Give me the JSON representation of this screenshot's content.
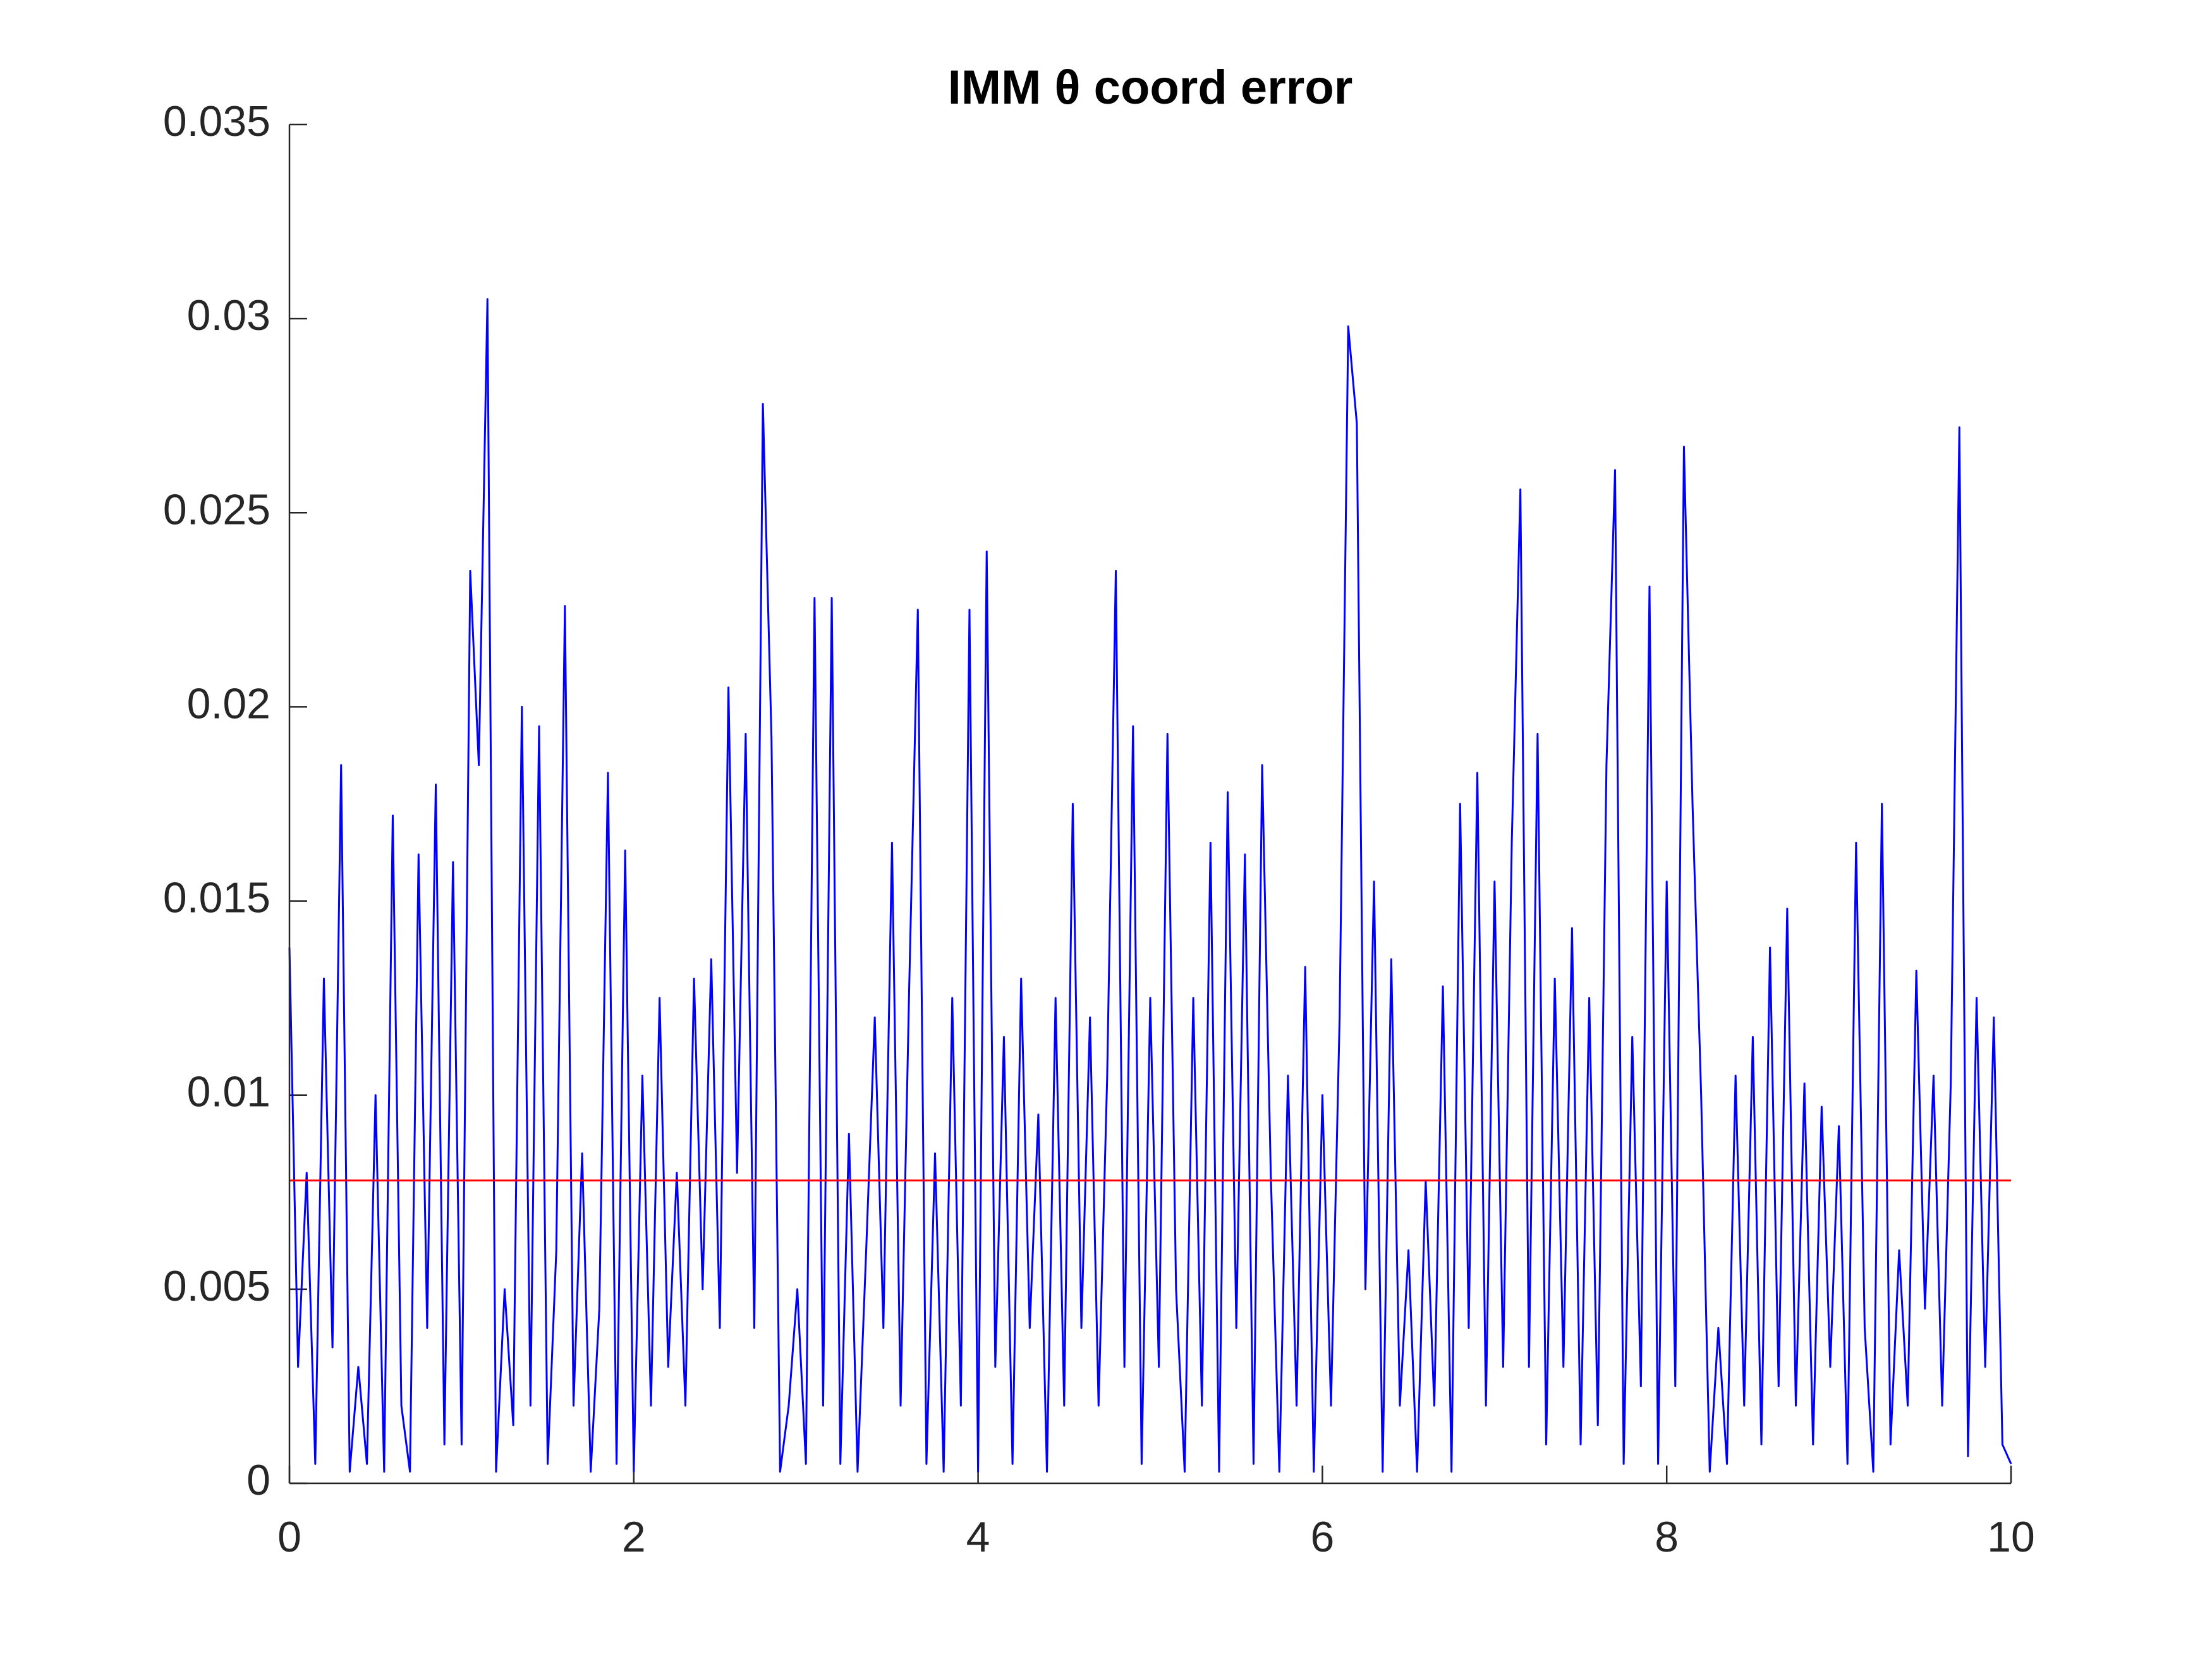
{
  "chart_data": {
    "type": "line",
    "title": "IMM θ coord error",
    "xlim": [
      0,
      10
    ],
    "xticks": [
      0,
      2,
      4,
      6,
      8,
      10
    ],
    "ylim": [
      0,
      0.035
    ],
    "yticks": [
      0,
      0.005,
      0.01,
      0.015,
      0.02,
      0.025,
      0.03,
      0.035
    ],
    "grid": false,
    "series": [
      {
        "color": "#0000ff",
        "x": [
          0,
          0.05,
          0.1,
          0.15,
          0.2,
          0.25,
          0.3,
          0.35,
          0.4,
          0.45,
          0.5,
          0.55,
          0.6,
          0.65,
          0.7,
          0.75,
          0.8,
          0.85,
          0.9,
          0.95,
          1,
          1.05,
          1.1,
          1.15,
          1.2,
          1.25,
          1.3,
          1.35,
          1.4,
          1.45,
          1.5,
          1.55,
          1.6,
          1.65,
          1.7,
          1.75,
          1.8,
          1.85,
          1.9,
          1.95,
          2,
          2.05,
          2.1,
          2.15,
          2.2,
          2.25,
          2.3,
          2.35,
          2.4,
          2.45,
          2.5,
          2.55,
          2.6,
          2.65,
          2.7,
          2.75,
          2.8,
          2.85,
          2.9,
          2.95,
          3,
          3.05,
          3.1,
          3.15,
          3.2,
          3.25,
          3.3,
          3.35,
          3.4,
          3.45,
          3.5,
          3.55,
          3.6,
          3.65,
          3.7,
          3.75,
          3.8,
          3.85,
          3.9,
          3.95,
          4,
          4.05,
          4.1,
          4.15,
          4.2,
          4.25,
          4.3,
          4.35,
          4.4,
          4.45,
          4.5,
          4.55,
          4.6,
          4.65,
          4.7,
          4.75,
          4.8,
          4.85,
          4.9,
          4.95,
          5,
          5.05,
          5.1,
          5.15,
          5.2,
          5.25,
          5.3,
          5.35,
          5.4,
          5.45,
          5.5,
          5.55,
          5.6,
          5.65,
          5.7,
          5.75,
          5.8,
          5.85,
          5.9,
          5.95,
          6,
          6.05,
          6.1,
          6.15,
          6.2,
          6.25,
          6.3,
          6.35,
          6.4,
          6.45,
          6.5,
          6.55,
          6.6,
          6.65,
          6.7,
          6.75,
          6.8,
          6.85,
          6.9,
          6.95,
          7,
          7.05,
          7.1,
          7.15,
          7.2,
          7.25,
          7.3,
          7.35,
          7.4,
          7.45,
          7.5,
          7.55,
          7.6,
          7.65,
          7.7,
          7.75,
          7.8,
          7.85,
          7.9,
          7.95,
          8,
          8.05,
          8.1,
          8.15,
          8.2,
          8.25,
          8.3,
          8.35,
          8.4,
          8.45,
          8.5,
          8.55,
          8.6,
          8.65,
          8.7,
          8.75,
          8.8,
          8.85,
          8.9,
          8.95,
          9,
          9.05,
          9.1,
          9.15,
          9.2,
          9.25,
          9.3,
          9.35,
          9.4,
          9.45,
          9.5,
          9.55,
          9.6,
          9.65,
          9.7,
          9.75,
          9.8,
          9.85,
          9.9,
          9.95,
          10
        ],
        "values": [
          0.0138,
          0.003,
          0.008,
          0.0005,
          0.013,
          0.0035,
          0.0185,
          0.0003,
          0.003,
          0.0005,
          0.01,
          0.0003,
          0.0172,
          0.002,
          0.0003,
          0.0162,
          0.004,
          0.018,
          0.001,
          0.016,
          0.001,
          0.0235,
          0.0185,
          0.0305,
          0.0003,
          0.005,
          0.0015,
          0.02,
          0.002,
          0.0195,
          0.0005,
          0.006,
          0.0226,
          0.002,
          0.0085,
          0.0003,
          0.0045,
          0.0183,
          0.0005,
          0.0163,
          0.0003,
          0.0105,
          0.002,
          0.0125,
          0.003,
          0.008,
          0.002,
          0.013,
          0.005,
          0.0135,
          0.004,
          0.0205,
          0.008,
          0.0193,
          0.004,
          0.0278,
          0.0192,
          0.0003,
          0.002,
          0.005,
          0.0005,
          0.0228,
          0.002,
          0.0228,
          0.0005,
          0.009,
          0.0003,
          0.006,
          0.012,
          0.004,
          0.0165,
          0.002,
          0.0128,
          0.0225,
          0.0005,
          0.0085,
          0.0003,
          0.0125,
          0.002,
          0.0225,
          0.0003,
          0.024,
          0.003,
          0.0115,
          0.0005,
          0.013,
          0.004,
          0.0095,
          0.0003,
          0.0125,
          0.002,
          0.0175,
          0.004,
          0.012,
          0.002,
          0.0105,
          0.0235,
          0.003,
          0.0195,
          0.0005,
          0.0125,
          0.003,
          0.0193,
          0.005,
          0.0003,
          0.0125,
          0.002,
          0.0165,
          0.0003,
          0.0178,
          0.004,
          0.0162,
          0.0005,
          0.0185,
          0.008,
          0.0003,
          0.0105,
          0.002,
          0.0133,
          0.0003,
          0.01,
          0.002,
          0.012,
          0.0298,
          0.0273,
          0.005,
          0.0155,
          0.0003,
          0.0135,
          0.002,
          0.006,
          0.0003,
          0.0078,
          0.002,
          0.0128,
          0.0003,
          0.0175,
          0.004,
          0.0183,
          0.002,
          0.0155,
          0.003,
          0.0165,
          0.0256,
          0.003,
          0.0193,
          0.001,
          0.013,
          0.003,
          0.0143,
          0.001,
          0.0125,
          0.0015,
          0.0185,
          0.0261,
          0.0005,
          0.0115,
          0.0025,
          0.0231,
          0.0005,
          0.0155,
          0.0025,
          0.0267,
          0.0175,
          0.01,
          0.0003,
          0.004,
          0.0005,
          0.0105,
          0.002,
          0.0115,
          0.001,
          0.0138,
          0.0025,
          0.0148,
          0.002,
          0.0103,
          0.001,
          0.0097,
          0.003,
          0.0092,
          0.0005,
          0.0165,
          0.004,
          0.0003,
          0.0175,
          0.001,
          0.006,
          0.002,
          0.0132,
          0.0045,
          0.0105,
          0.002,
          0.0103,
          0.0272,
          0.0007,
          0.0125,
          0.003,
          0.012,
          0.001,
          0.0005
        ]
      },
      {
        "color": "#ff0000",
        "x": [
          0,
          10
        ],
        "values": [
          0.0078,
          0.0078
        ]
      }
    ]
  }
}
